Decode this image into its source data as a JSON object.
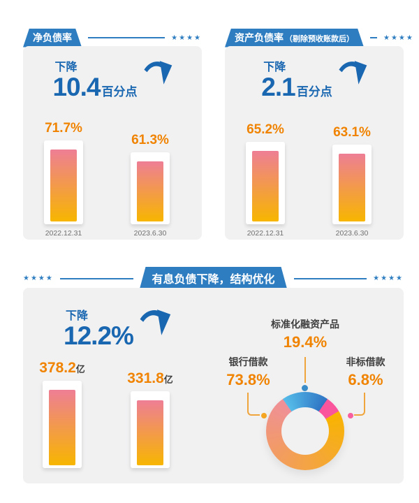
{
  "colors": {
    "tab_blue": "#2e7dc0",
    "text_blue": "#1a67b1",
    "orange": "#f08300",
    "bar_top_pink": "#ee7e95",
    "bar_bottom_amber": "#f7b600",
    "panel_bg": "#f1f1f2",
    "date_gray": "#6f6f6f",
    "dark_text": "#3f3f3f",
    "leader_line": "#f0a43c"
  },
  "net_debt": {
    "title": "净负债率",
    "stars": "★★★★",
    "drop_label": "下降",
    "drop_value": "10.4",
    "drop_unit": "百分点",
    "bars": [
      {
        "value_label": "71.7%",
        "date": "2022.12.31"
      },
      {
        "value_label": "61.3%",
        "date": "2023.6.30"
      }
    ]
  },
  "asset_liability": {
    "title": "资产负债率",
    "subtitle": "（剔除预收账款后）",
    "stars": "★★★★",
    "drop_label": "下降",
    "drop_value": "2.1",
    "drop_unit": "百分点",
    "bars": [
      {
        "value_label": "65.2%",
        "date": "2022.12.31"
      },
      {
        "value_label": "63.1%",
        "date": "2023.6.30"
      }
    ]
  },
  "interest_debt": {
    "title": "有息负债下降，结构优化",
    "stars_left": "★★★★",
    "stars_right": "★★★★",
    "drop_label": "下降",
    "drop_value": "12.2%",
    "bars": [
      {
        "value_label": "378.2",
        "unit": "亿"
      },
      {
        "value_label": "331.8",
        "unit": "亿"
      }
    ],
    "donut": {
      "start_angle": -35,
      "segments": [
        {
          "name": "标准化融资产品",
          "pct_label": "19.4%",
          "value": 19.4,
          "color_start": "#56bde9",
          "color_end": "#2f74c4",
          "dot_color": "#3a8cc9"
        },
        {
          "name": "非标借款",
          "pct_label": "6.8%",
          "value": 6.8,
          "color_start": "#fa549c",
          "color_end": "#f9559d",
          "dot_color": "#f75f9e"
        },
        {
          "name": "银行借款",
          "pct_label": "73.8%",
          "value": 73.8,
          "color_start": "#f8b400",
          "color_end": "#ef8f99",
          "dot_color": "#f5a623"
        }
      ]
    }
  },
  "chart_data": [
    {
      "type": "bar",
      "title": "净负债率",
      "categories": [
        "2022.12.31",
        "2023.6.30"
      ],
      "values": [
        71.7,
        61.3
      ],
      "unit": "%",
      "annotation": "下降10.4百分点",
      "ylim": [
        0,
        80
      ]
    },
    {
      "type": "bar",
      "title": "资产负债率（剔除预收账款后）",
      "categories": [
        "2022.12.31",
        "2023.6.30"
      ],
      "values": [
        65.2,
        63.1
      ],
      "unit": "%",
      "annotation": "下降2.1百分点",
      "ylim": [
        0,
        70
      ]
    },
    {
      "type": "bar",
      "title": "有息负债下降，结构优化",
      "values": [
        378.2,
        331.8
      ],
      "unit": "亿",
      "annotation": "下降12.2%"
    },
    {
      "type": "pie",
      "title": "有息负债结构",
      "donut": true,
      "labels": [
        "标准化融资产品",
        "非标借款",
        "银行借款"
      ],
      "values": [
        19.4,
        6.8,
        73.8
      ],
      "unit": "%"
    }
  ]
}
